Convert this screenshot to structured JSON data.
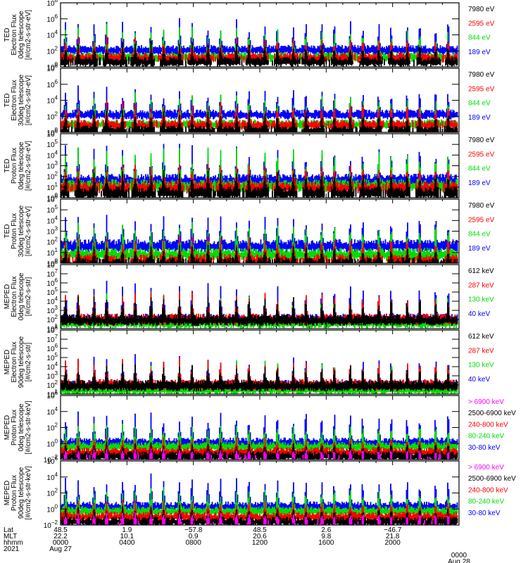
{
  "chart_data": {
    "type": "line",
    "title": "",
    "x_axis": {
      "rows": [
        {
          "label": "Lat",
          "values": [
            "48.5",
            "1.9",
            "-57.8",
            "48.5",
            "2.6",
            "-46.7",
            ""
          ]
        },
        {
          "label": "MLT",
          "values": [
            "22.2",
            "10.1",
            "0.9",
            "20.6",
            "9.8",
            "21.8",
            ""
          ]
        },
        {
          "label": "hhmm",
          "values": [
            "0000",
            "0400",
            "0800",
            "1200",
            "1600",
            "2000",
            "0000"
          ]
        },
        {
          "label": "2021",
          "values": [
            "Aug 27",
            "",
            "",
            "",
            "",
            "",
            "Aug 28"
          ]
        }
      ],
      "range_hours": [
        0,
        24
      ],
      "major_tick_hours": [
        0,
        4,
        8,
        12,
        16,
        20,
        24
      ]
    },
    "panels": [
      {
        "ylabel": [
          "TED",
          "Electron Flux",
          "0deg telescope",
          "[#/cm2-s-str-eV]"
        ],
        "yscale": "log",
        "ylim_exp": [
          0,
          8
        ],
        "ytick_exps": [
          0,
          2,
          4,
          6,
          8
        ],
        "legend": [
          {
            "text": "7980 eV",
            "color": "#000000"
          },
          {
            "text": "2595 eV",
            "color": "#ff0000"
          },
          {
            "text": "844 eV",
            "color": "#00dd00"
          },
          {
            "text": "189 eV",
            "color": "#0000ff"
          }
        ],
        "baseline_exp": {
          "#0000ff": 2.5,
          "#00dd00": 1.6,
          "#ff0000": 1.5,
          "#000000": 1.0
        },
        "peak_exp": {
          "#0000ff": 6.5,
          "#00dd00": 5.5,
          "#ff0000": 4.0,
          "#000000": 3.3
        }
      },
      {
        "ylabel": [
          "TED",
          "Electron Flux",
          "30deg telescope",
          "[#/cm2-s-str-eV]"
        ],
        "yscale": "log",
        "ylim_exp": [
          0,
          8
        ],
        "ytick_exps": [
          0,
          2,
          4,
          6,
          8
        ],
        "legend": [
          {
            "text": "7980 eV",
            "color": "#000000"
          },
          {
            "text": "2595 eV",
            "color": "#ff0000"
          },
          {
            "text": "844 eV",
            "color": "#00dd00"
          },
          {
            "text": "189 eV",
            "color": "#0000ff"
          }
        ],
        "baseline_exp": {
          "#0000ff": 2.6,
          "#00dd00": 1.4,
          "#ff0000": 1.3,
          "#000000": 0.6
        },
        "peak_exp": {
          "#0000ff": 6.0,
          "#00dd00": 5.3,
          "#ff0000": 4.2,
          "#000000": 3.0
        }
      },
      {
        "ylabel": [
          "TED",
          "Proton Flux",
          "0deg telescope",
          "[#/cm2-s-str-eV]"
        ],
        "yscale": "log",
        "ylim_exp": [
          0,
          6
        ],
        "ytick_exps": [
          0,
          1,
          2,
          3,
          4,
          5,
          6
        ],
        "legend": [
          {
            "text": "7980 eV",
            "color": "#000000"
          },
          {
            "text": "2595 eV",
            "color": "#ff0000"
          },
          {
            "text": "844 eV",
            "color": "#00dd00"
          },
          {
            "text": "189 eV",
            "color": "#0000ff"
          }
        ],
        "baseline_exp": {
          "#0000ff": 2.0,
          "#00dd00": 1.5,
          "#ff0000": 1.3,
          "#000000": 0.8
        },
        "peak_exp": {
          "#0000ff": 5.3,
          "#00dd00": 5.0,
          "#ff0000": 3.4,
          "#000000": 2.8
        }
      },
      {
        "ylabel": [
          "TED",
          "Proton Flux",
          "30deg telescope",
          "[#/cm2-s-str-eV]"
        ],
        "yscale": "log",
        "ylim_exp": [
          0,
          6
        ],
        "ytick_exps": [
          0,
          1,
          2,
          3,
          4,
          5,
          6
        ],
        "legend": [
          {
            "text": "7980 eV",
            "color": "#000000"
          },
          {
            "text": "2595 eV",
            "color": "#ff0000"
          },
          {
            "text": "844 eV",
            "color": "#00dd00"
          },
          {
            "text": "189 eV",
            "color": "#0000ff"
          }
        ],
        "baseline_exp": {
          "#0000ff": 2.0,
          "#00dd00": 1.2,
          "#ff0000": 0.6,
          "#000000": 0.3
        },
        "peak_exp": {
          "#0000ff": 4.8,
          "#00dd00": 4.2,
          "#ff0000": 2.8,
          "#000000": 1.8
        }
      },
      {
        "ylabel": [
          "MEPED",
          "Electron Flux",
          "0deg telescope",
          "[#/cm2-s-str]"
        ],
        "yscale": "log",
        "ylim_exp": [
          1,
          8
        ],
        "ytick_exps": [
          1,
          2,
          3,
          4,
          5,
          6,
          7,
          8
        ],
        "legend": [
          {
            "text": "612 keV",
            "color": "#000000"
          },
          {
            "text": "287 keV",
            "color": "#ff0000"
          },
          {
            "text": "130 keV",
            "color": "#00dd00"
          },
          {
            "text": "40 keV",
            "color": "#0000ff"
          }
        ],
        "baseline_exp": {
          "#0000ff": 2.4,
          "#00dd00": 2.0,
          "#ff0000": 2.4,
          "#000000": 2.3
        },
        "peak_exp": {
          "#0000ff": 6.5,
          "#00dd00": 5.2,
          "#ff0000": 5.3,
          "#000000": 4.8
        }
      },
      {
        "ylabel": [
          "MEPED",
          "Electron Flux",
          "90deg telescope",
          "[#/cm2-s-str]"
        ],
        "yscale": "log",
        "ylim_exp": [
          1,
          8
        ],
        "ytick_exps": [
          1,
          2,
          3,
          4,
          5,
          6,
          7,
          8
        ],
        "legend": [
          {
            "text": "612 keV",
            "color": "#000000"
          },
          {
            "text": "287 keV",
            "color": "#ff0000"
          },
          {
            "text": "130 keV",
            "color": "#00dd00"
          },
          {
            "text": "40 keV",
            "color": "#0000ff"
          }
        ],
        "baseline_exp": {
          "#0000ff": 2.3,
          "#00dd00": 1.9,
          "#ff0000": 2.4,
          "#000000": 2.3
        },
        "peak_exp": {
          "#0000ff": 5.5,
          "#00dd00": 5.0,
          "#ff0000": 5.0,
          "#000000": 4.5
        }
      },
      {
        "ylabel": [
          "MEPED",
          "Proton Flux",
          "0deg telescope",
          "[#/cm2-s-str-keV]"
        ],
        "yscale": "log",
        "ylim_exp": [
          -2,
          6
        ],
        "ytick_exps": [
          -2,
          0,
          2,
          4,
          6
        ],
        "legend": [
          {
            "text": "> 6900 keV",
            "color": "#ff00ff"
          },
          {
            "text": "2500-6900 keV",
            "color": "#000000"
          },
          {
            "text": "240-800 keV",
            "color": "#ff0000"
          },
          {
            "text": "80-240 keV",
            "color": "#00dd00"
          },
          {
            "text": "30-80 keV",
            "color": "#0000ff"
          }
        ],
        "baseline_exp": {
          "#0000ff": 0.5,
          "#00dd00": 0.0,
          "#ff0000": -0.7,
          "#000000": -1.2,
          "#ff00ff": -1.5
        },
        "peak_exp": {
          "#0000ff": 4.8,
          "#00dd00": 2.8,
          "#ff0000": 1.0,
          "#000000": 0.3,
          "#ff00ff": -0.6
        }
      },
      {
        "ylabel": [
          "MEPED",
          "Proton Flux",
          "90deg telescope",
          "[#/cm2-s-str-keV]"
        ],
        "yscale": "log",
        "ylim_exp": [
          -2,
          6
        ],
        "ytick_exps": [
          -2,
          0,
          2,
          4,
          6
        ],
        "legend": [
          {
            "text": "> 6900 keV",
            "color": "#ff00ff"
          },
          {
            "text": "2500-6900 keV",
            "color": "#000000"
          },
          {
            "text": "240-800 keV",
            "color": "#ff0000"
          },
          {
            "text": "80-240 keV",
            "color": "#00dd00"
          },
          {
            "text": "30-80 keV",
            "color": "#0000ff"
          }
        ],
        "baseline_exp": {
          "#0000ff": 0.7,
          "#00dd00": 0.1,
          "#ff0000": -0.6,
          "#000000": -1.2,
          "#ff00ff": -1.5
        },
        "peak_exp": {
          "#0000ff": 4.8,
          "#00dd00": 3.0,
          "#ff0000": 1.2,
          "#000000": 0.5,
          "#ff00ff": -0.4
        }
      }
    ],
    "passes_per_day": 14,
    "note": "Time series of particle flux across ~14 orbital passes, each showing auroral-zone peaks; values estimated visually."
  }
}
